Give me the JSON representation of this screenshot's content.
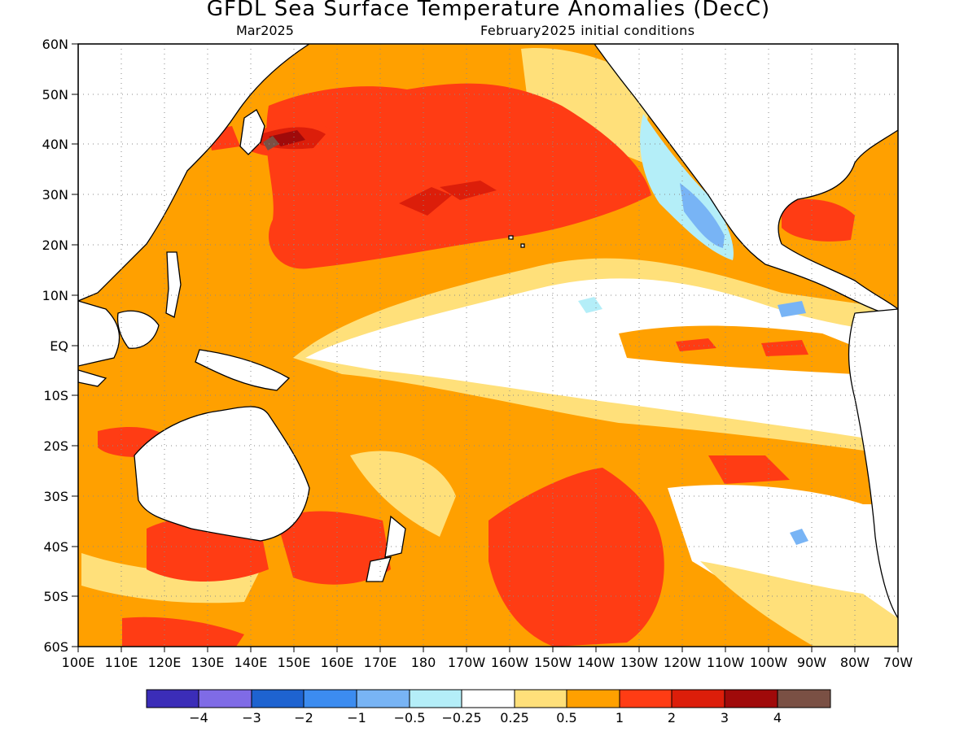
{
  "title": "GFDL Sea Surface Temperature Anomalies (DecC)",
  "valid_month": "Mar2025",
  "init_label": "February2025 initial conditions",
  "lat_labels": [
    "60N",
    "50N",
    "40N",
    "30N",
    "20N",
    "10N",
    "EQ",
    "10S",
    "20S",
    "30S",
    "40S",
    "50S",
    "60S"
  ],
  "lon_labels": [
    "100E",
    "110E",
    "120E",
    "130E",
    "140E",
    "150E",
    "160E",
    "170E",
    "180",
    "170W",
    "160W",
    "150W",
    "140W",
    "130W",
    "120W",
    "110W",
    "100W",
    "90W",
    "80W",
    "70W"
  ],
  "colorbar": {
    "colors": [
      "#3b2db8",
      "#7f6be6",
      "#1e63d0",
      "#3c8cf0",
      "#78b4f5",
      "#b4eef8",
      "#ffffff",
      "#ffe07a",
      "#ffa000",
      "#ff3c14",
      "#dc1e0a",
      "#a00a0a",
      "#7a5044"
    ],
    "labels": [
      "−4",
      "−3",
      "−2",
      "−1",
      "−0.5",
      "−0.25",
      "0.25",
      "0.5",
      "1",
      "2",
      "3",
      "4"
    ]
  },
  "map_features": {
    "anomaly_fill_colors": {
      "base": "#ffa000",
      "weak": "#ffe07a",
      "near_zero": "#ffffff",
      "strong": "#ff3c14",
      "stronger": "#dc1e0a",
      "strongest": "#a00a0a",
      "peak": "#7a5044",
      "cool": "#b4eef8",
      "cooler": "#78b4f5"
    },
    "coastline_color": "#000000",
    "gridline_color": "#8a8a8a"
  }
}
